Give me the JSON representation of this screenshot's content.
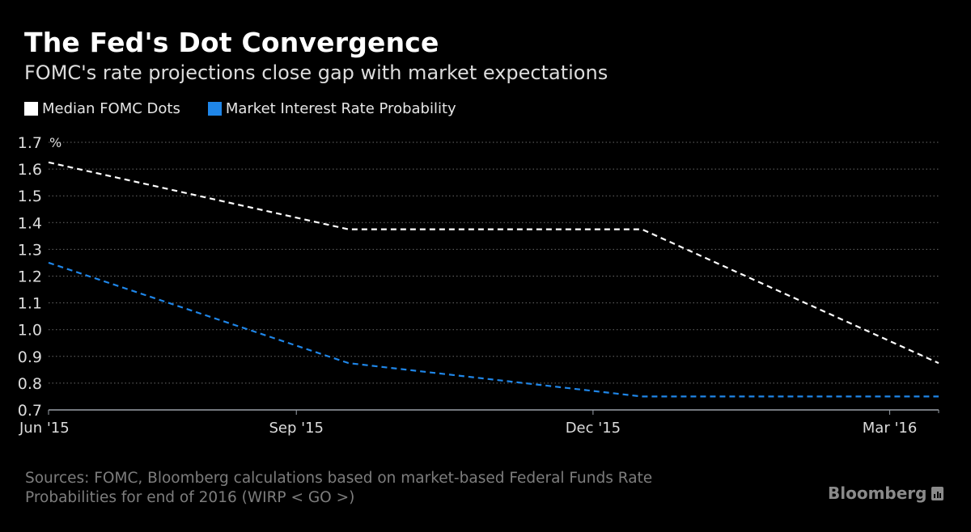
{
  "header": {
    "title": "The Fed's Dot Convergence",
    "subtitle": "FOMC's rate projections close gap with market expectations"
  },
  "legend": [
    {
      "label": "Median FOMC Dots",
      "color": "#ffffff"
    },
    {
      "label": "Market Interest Rate Probability",
      "color": "#1f86e8"
    }
  ],
  "footer": {
    "sources_line1": "Sources: FOMC, Bloomberg calculations based on market-based Federal Funds Rate",
    "sources_line2": "Probabilities for end of 2016 (WIRP < GO >)",
    "brand": "Bloomberg",
    "brand_icon": "bloomberg-chart-icon"
  },
  "chart_data": {
    "type": "line",
    "title": "The Fed's Dot Convergence",
    "subtitle": "FOMC's rate projections close gap with market expectations",
    "xlabel": "",
    "ylabel": "%",
    "ylim": [
      0.7,
      1.7
    ],
    "yticks": [
      "0.7",
      "0.8",
      "0.9",
      "1.0",
      "1.1",
      "1.2",
      "1.3",
      "1.4",
      "1.5",
      "1.6",
      "1.7"
    ],
    "y_unit_label": "%",
    "xticks": [
      {
        "label": "Jun '15",
        "date": "2015-06-17"
      },
      {
        "label": "Sep '15",
        "date": "2015-09-01"
      },
      {
        "label": "Dec '15",
        "date": "2015-12-01"
      },
      {
        "label": "Mar '16",
        "date": "2016-03-01"
      }
    ],
    "xlim": [
      "2015-06-17",
      "2016-03-16"
    ],
    "x": [
      "2015-06-17",
      "2015-09-17",
      "2015-12-16",
      "2016-03-16"
    ],
    "series": [
      {
        "name": "Median FOMC Dots",
        "color": "#ffffff",
        "style": "dashed",
        "values": [
          1.625,
          1.375,
          1.375,
          0.875
        ]
      },
      {
        "name": "Market Interest Rate Probability",
        "color": "#1f86e8",
        "style": "dashed",
        "values": [
          1.25,
          0.875,
          0.75,
          0.75
        ]
      }
    ],
    "grid": true,
    "legend_position": "top-left"
  }
}
